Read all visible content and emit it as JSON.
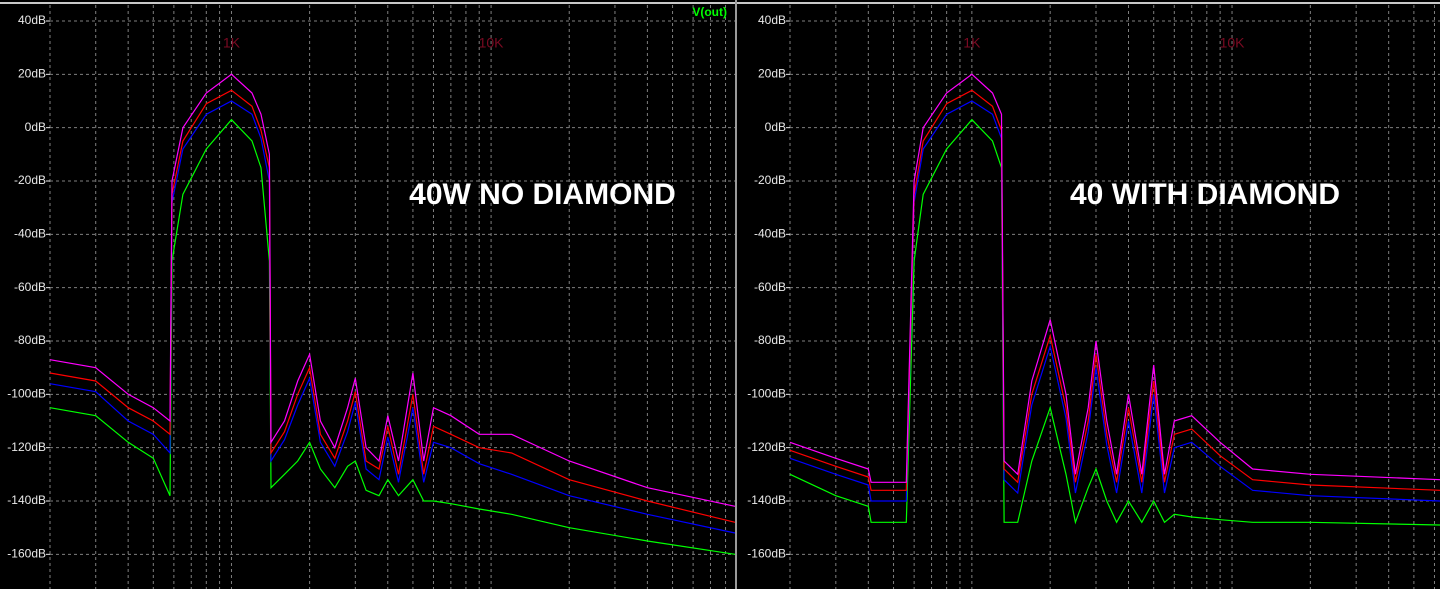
{
  "chart_data": [
    {
      "type": "line",
      "title": "40W NO DIAMOND",
      "trace_label": "V(out)",
      "annotations": [
        {
          "text": "1K",
          "x": 1000
        },
        {
          "text": "10K",
          "x": 10000
        }
      ],
      "log_x": true,
      "grid": true,
      "background": "#000000",
      "xlim": [
        200,
        87000
      ],
      "xgrid": [
        200,
        300,
        400,
        500,
        600,
        700,
        800,
        900,
        1000,
        2000,
        3000,
        4000,
        5000,
        6000,
        7000,
        8000,
        9000,
        10000,
        20000,
        30000,
        40000,
        50000,
        60000,
        70000,
        80000
      ],
      "ylim": [
        -173,
        46
      ],
      "yticks": [
        {
          "value": 40,
          "label": "40dB"
        },
        {
          "value": 20,
          "label": "20dB"
        },
        {
          "value": 0,
          "label": "0dB"
        },
        {
          "value": -20,
          "label": "-20dB"
        },
        {
          "value": -40,
          "label": "-40dB"
        },
        {
          "value": -60,
          "label": "-60dB"
        },
        {
          "value": -80,
          "label": "-80dB"
        },
        {
          "value": -100,
          "label": "-100dB"
        },
        {
          "value": -120,
          "label": "-120dB"
        },
        {
          "value": -140,
          "label": "-140dB"
        },
        {
          "value": -160,
          "label": "-160dB"
        }
      ],
      "x": [
        200,
        300,
        400,
        500,
        580,
        590,
        650,
        800,
        1000,
        1200,
        1300,
        1400,
        1420,
        1600,
        1800,
        2000,
        2200,
        2500,
        2800,
        3000,
        3300,
        3700,
        4000,
        4400,
        5000,
        5500,
        6000,
        7000,
        9000,
        12000,
        20000,
        40000,
        87000
      ],
      "series": [
        {
          "color": "#00ff00",
          "values": [
            -105,
            -108,
            -118,
            -124,
            -138,
            -50,
            -25,
            -8,
            3,
            -5,
            -15,
            -50,
            -135,
            -130,
            -125,
            -118,
            -128,
            -135,
            -127,
            -125,
            -136,
            -138,
            -132,
            -138,
            -132,
            -140,
            -140,
            -141,
            -143,
            -145,
            -150,
            -155,
            -160
          ]
        },
        {
          "color": "#0000ff",
          "values": [
            -96,
            -99,
            -110,
            -115,
            -122,
            -28,
            -8,
            5,
            10,
            5,
            -4,
            -20,
            -125,
            -117,
            -104,
            -94,
            -118,
            -127,
            -114,
            -103,
            -128,
            -132,
            -116,
            -133,
            -105,
            -133,
            -118,
            -120,
            -126,
            -130,
            -138,
            -145,
            -152
          ]
        },
        {
          "color": "#ff0000",
          "values": [
            -92,
            -95,
            -105,
            -110,
            -115,
            -25,
            -5,
            9,
            14,
            8,
            -1,
            -15,
            -122,
            -114,
            -100,
            -90,
            -115,
            -124,
            -110,
            -99,
            -125,
            -128,
            -112,
            -130,
            -100,
            -130,
            -112,
            -115,
            -120,
            -122,
            -132,
            -140,
            -148
          ]
        },
        {
          "color": "#ff00ff",
          "values": [
            -87,
            -90,
            -100,
            -105,
            -110,
            -20,
            0,
            13,
            20,
            13,
            5,
            -10,
            -118,
            -110,
            -95,
            -85,
            -110,
            -120,
            -105,
            -94,
            -120,
            -125,
            -108,
            -125,
            -92,
            -125,
            -105,
            -108,
            -115,
            -115,
            -125,
            -135,
            -142
          ]
        }
      ]
    },
    {
      "type": "line",
      "title": "40 WITH DIAMOND",
      "annotations": [
        {
          "text": "1K",
          "x": 1000
        },
        {
          "text": "10K",
          "x": 10000
        }
      ],
      "log_x": true,
      "grid": true,
      "background": "#000000",
      "xlim": [
        200,
        63000
      ],
      "xgrid": [
        200,
        300,
        400,
        500,
        600,
        700,
        800,
        900,
        1000,
        2000,
        3000,
        4000,
        5000,
        6000,
        7000,
        8000,
        9000,
        10000,
        20000,
        30000,
        40000,
        50000,
        60000
      ],
      "ylim": [
        -173,
        46
      ],
      "yticks": [
        {
          "value": 40,
          "label": "40dB"
        },
        {
          "value": 20,
          "label": "20dB"
        },
        {
          "value": 0,
          "label": "0dB"
        },
        {
          "value": -20,
          "label": "-20dB"
        },
        {
          "value": -40,
          "label": "-40dB"
        },
        {
          "value": -60,
          "label": "-60dB"
        },
        {
          "value": -80,
          "label": "-80dB"
        },
        {
          "value": -100,
          "label": "-100dB"
        },
        {
          "value": -120,
          "label": "-120dB"
        },
        {
          "value": -140,
          "label": "-140dB"
        },
        {
          "value": -160,
          "label": "-160dB"
        }
      ],
      "x": [
        200,
        300,
        400,
        410,
        560,
        600,
        650,
        800,
        1000,
        1200,
        1300,
        1330,
        1500,
        1700,
        2000,
        2300,
        2500,
        2800,
        3000,
        3300,
        3600,
        4000,
        4500,
        5000,
        5500,
        6000,
        7000,
        9000,
        12000,
        20000,
        63000
      ],
      "series": [
        {
          "color": "#00ff00",
          "values": [
            -130,
            -138,
            -142,
            -148,
            -148,
            -50,
            -25,
            -8,
            3,
            -5,
            -15,
            -148,
            -148,
            -125,
            -105,
            -130,
            -148,
            -135,
            -128,
            -140,
            -148,
            -140,
            -148,
            -140,
            -148,
            -145,
            -146,
            -147,
            -148,
            -148,
            -149
          ]
        },
        {
          "color": "#0000ff",
          "values": [
            -124,
            -130,
            -134,
            -140,
            -140,
            -28,
            -8,
            5,
            10,
            5,
            -4,
            -132,
            -137,
            -104,
            -82,
            -109,
            -137,
            -114,
            -90,
            -119,
            -137,
            -110,
            -137,
            -100,
            -137,
            -120,
            -118,
            -127,
            -136,
            -138,
            -140
          ]
        },
        {
          "color": "#ff0000",
          "values": [
            -121,
            -127,
            -131,
            -136,
            -136,
            -25,
            -5,
            9,
            14,
            8,
            -1,
            -128,
            -133,
            -100,
            -78,
            -105,
            -133,
            -110,
            -85,
            -115,
            -133,
            -105,
            -133,
            -95,
            -133,
            -115,
            -113,
            -123,
            -132,
            -134,
            -136
          ]
        },
        {
          "color": "#ff00ff",
          "values": [
            -118,
            -124,
            -128,
            -133,
            -133,
            -20,
            0,
            13,
            20,
            13,
            5,
            -125,
            -130,
            -95,
            -72,
            -100,
            -130,
            -105,
            -80,
            -110,
            -130,
            -100,
            -130,
            -89,
            -130,
            -110,
            -108,
            -118,
            -128,
            -130,
            -132
          ]
        }
      ]
    }
  ]
}
